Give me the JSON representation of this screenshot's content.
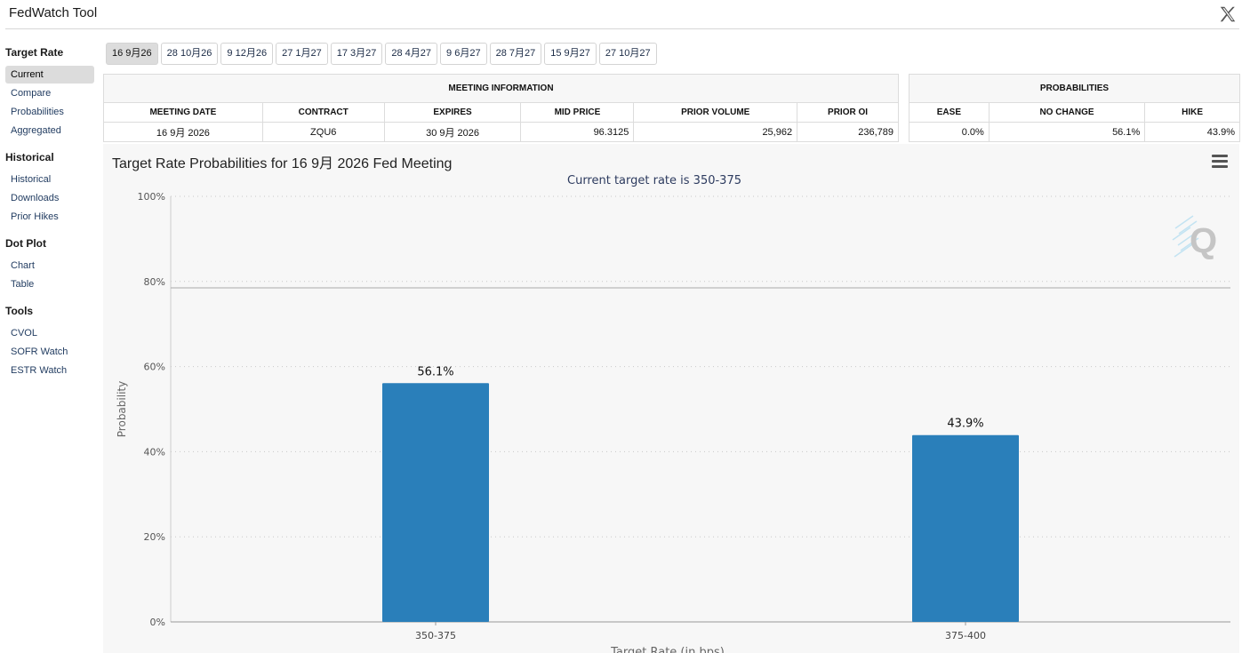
{
  "app": {
    "title": "FedWatch Tool"
  },
  "sidebar": {
    "sections": [
      {
        "heading": "Target Rate",
        "items": [
          "Current",
          "Compare",
          "Probabilities",
          "Aggregated"
        ]
      },
      {
        "heading": "Historical",
        "items": [
          "Historical",
          "Downloads",
          "Prior Hikes"
        ]
      },
      {
        "heading": "Dot Plot",
        "items": [
          "Chart",
          "Table"
        ]
      },
      {
        "heading": "Tools",
        "items": [
          "CVOL",
          "SOFR Watch",
          "ESTR Watch"
        ]
      }
    ],
    "active_item": "Current"
  },
  "meeting_tabs": [
    "16 9月26",
    "28 10月26",
    "9 12月26",
    "27 1月27",
    "17 3月27",
    "28 4月27",
    "9 6月27",
    "28 7月27",
    "15 9月27",
    "27 10月27"
  ],
  "active_tab": 0,
  "meeting_info": {
    "title": "MEETING INFORMATION",
    "headers": [
      "MEETING DATE",
      "CONTRACT",
      "EXPIRES",
      "MID PRICE",
      "PRIOR VOLUME",
      "PRIOR OI"
    ],
    "row": [
      "16 9月 2026",
      "ZQU6",
      "30 9月 2026",
      "96.3125",
      "25,962",
      "236,789"
    ]
  },
  "probabilities": {
    "title": "PROBABILITIES",
    "headers": [
      "EASE",
      "NO CHANGE",
      "HIKE"
    ],
    "row": [
      "0.0%",
      "56.1%",
      "43.9%"
    ]
  },
  "chart": {
    "title": "Target Rate Probabilities for 16 9月 2026 Fed Meeting",
    "menu_icon": "hamburger-menu-icon",
    "watermark_icon": "q-logo-icon"
  },
  "chart_data": {
    "type": "bar",
    "subtitle": "Current target rate is 350-375",
    "categories": [
      "350-375",
      "375-400"
    ],
    "values": [
      56.1,
      43.9
    ],
    "data_labels": [
      "56.1%",
      "43.9%"
    ],
    "ylabel": "Probability",
    "xlabel": "Target Rate (in bps)",
    "ylim": [
      0,
      100
    ],
    "yticks": [
      "0%",
      "20%",
      "40%",
      "60%",
      "80%",
      "100%"
    ],
    "reference_line": 78.5,
    "bar_color": "#2a7fba",
    "grid": true,
    "legend": "none"
  }
}
